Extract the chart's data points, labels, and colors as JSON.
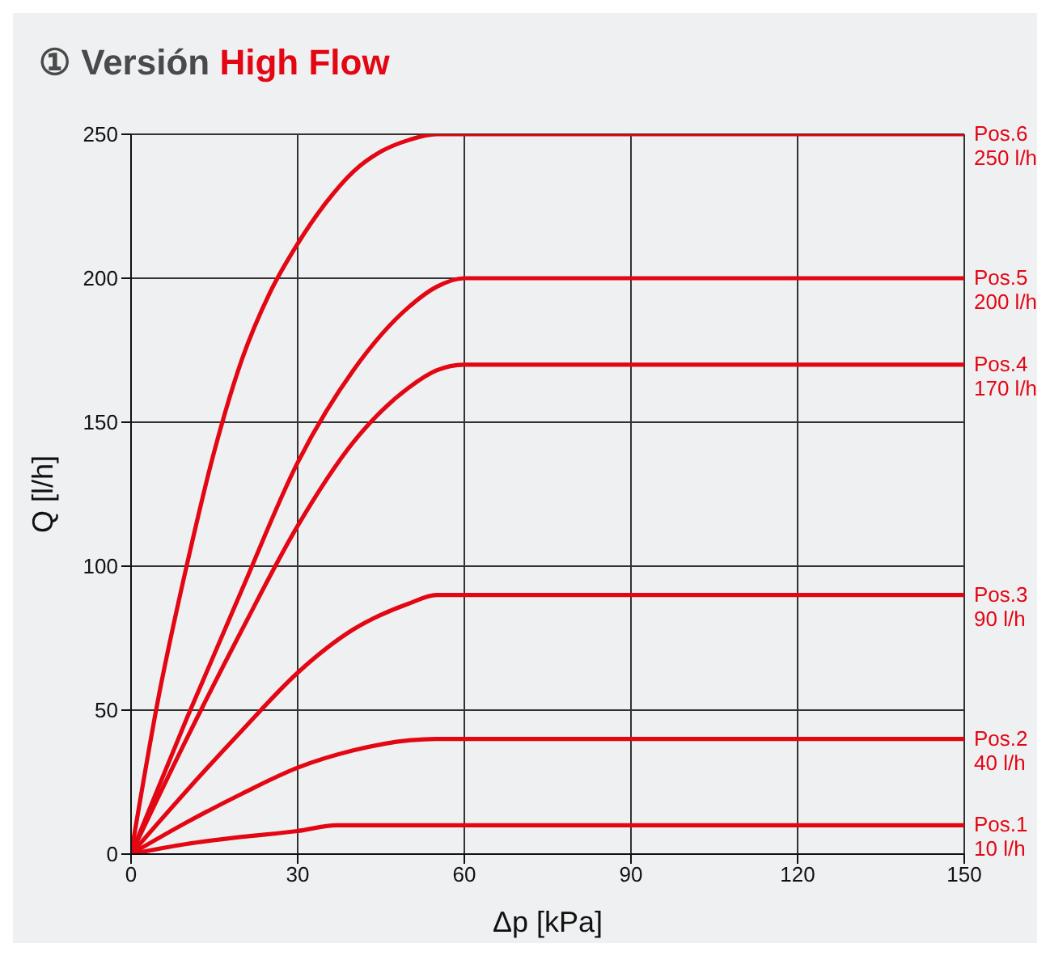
{
  "chart_data": {
    "type": "line",
    "title": "① Versión High Flow",
    "xlabel": "Δp [kPa]",
    "ylabel": "Q [l/h]",
    "xlim": [
      0,
      150
    ],
    "xticks": [
      0,
      30,
      60,
      90,
      120,
      150
    ],
    "ylim": [
      0,
      250
    ],
    "yticks": [
      0,
      50,
      100,
      150,
      200,
      250
    ],
    "grid": true,
    "legend": false,
    "marker": "none",
    "line_style": "solid",
    "series": [
      {
        "name": "Pos.6",
        "color": "#e30613",
        "x": [
          0,
          5,
          10,
          15,
          20,
          25,
          30,
          35,
          40,
          45,
          50,
          55,
          60,
          150
        ],
        "values": [
          0,
          55,
          100,
          140,
          172,
          195,
          212,
          226,
          237,
          244,
          248,
          250,
          250,
          250
        ]
      },
      {
        "name": "Pos.5",
        "color": "#e30613",
        "x": [
          0,
          10,
          20,
          30,
          40,
          50,
          55,
          60,
          150
        ],
        "values": [
          0,
          47,
          92,
          136,
          168,
          190,
          197,
          200,
          200
        ]
      },
      {
        "name": "Pos.4",
        "color": "#e30613",
        "x": [
          0,
          10,
          20,
          30,
          40,
          50,
          55,
          60,
          150
        ],
        "values": [
          0,
          40,
          78,
          114,
          143,
          162,
          168,
          170,
          170
        ]
      },
      {
        "name": "Pos.3",
        "color": "#e30613",
        "x": [
          0,
          10,
          20,
          30,
          40,
          50,
          55,
          60,
          150
        ],
        "values": [
          0,
          22,
          43,
          63,
          78,
          87,
          90,
          90,
          90
        ]
      },
      {
        "name": "Pos.2",
        "color": "#e30613",
        "x": [
          0,
          10,
          20,
          30,
          40,
          50,
          55,
          150
        ],
        "values": [
          0,
          11,
          21,
          30,
          36,
          39.5,
          40,
          40
        ]
      },
      {
        "name": "Pos.1",
        "color": "#e30613",
        "x": [
          0,
          10,
          20,
          30,
          37,
          150
        ],
        "values": [
          0,
          3.5,
          6,
          8,
          10,
          10
        ]
      }
    ],
    "annotations": [
      "250 l/h",
      "200 l/h",
      "170 l/h",
      "90 l/h",
      "40 l/h",
      "10 l/h"
    ]
  }
}
